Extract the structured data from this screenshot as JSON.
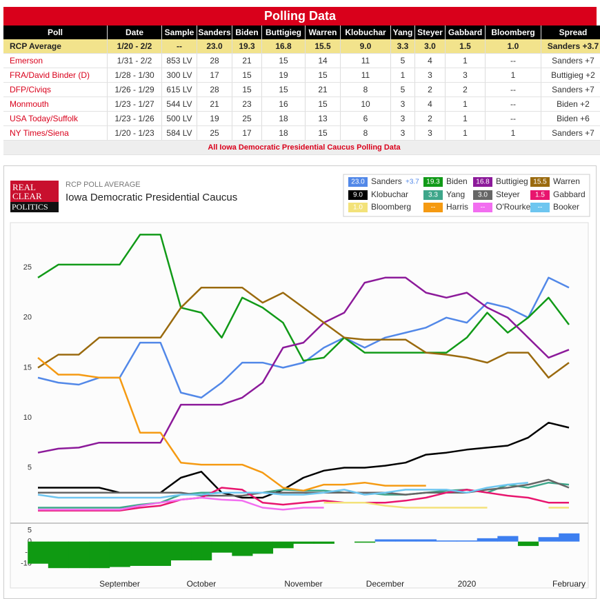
{
  "table": {
    "title": "Polling Data",
    "columns": [
      "Poll",
      "Date",
      "Sample",
      "Sanders",
      "Biden",
      "Buttigieg",
      "Warren",
      "Klobuchar",
      "Yang",
      "Steyer",
      "Gabbard",
      "Bloomberg",
      "Spread"
    ],
    "rows": [
      [
        "RCP Average",
        "1/20 - 2/2",
        "--",
        "23.0",
        "19.3",
        "16.8",
        "15.5",
        "9.0",
        "3.3",
        "3.0",
        "1.5",
        "1.0",
        "Sanders +3.7"
      ],
      [
        "Emerson",
        "1/31 - 2/2",
        "853 LV",
        "28",
        "21",
        "15",
        "14",
        "11",
        "5",
        "4",
        "1",
        "--",
        "Sanders +7"
      ],
      [
        "FRA/David Binder (D)",
        "1/28 - 1/30",
        "300 LV",
        "17",
        "15",
        "19",
        "15",
        "11",
        "1",
        "3",
        "3",
        "1",
        "Buttigieg +2"
      ],
      [
        "DFP/Civiqs",
        "1/26 - 1/29",
        "615 LV",
        "28",
        "15",
        "15",
        "21",
        "8",
        "5",
        "2",
        "2",
        "--",
        "Sanders +7"
      ],
      [
        "Monmouth",
        "1/23 - 1/27",
        "544 LV",
        "21",
        "23",
        "16",
        "15",
        "10",
        "3",
        "4",
        "1",
        "--",
        "Biden +2"
      ],
      [
        "USA Today/Suffolk",
        "1/23 - 1/26",
        "500 LV",
        "19",
        "25",
        "18",
        "13",
        "6",
        "3",
        "2",
        "1",
        "--",
        "Biden +6"
      ],
      [
        "NY Times/Siena",
        "1/20 - 1/23",
        "584 LV",
        "25",
        "17",
        "18",
        "15",
        "8",
        "3",
        "3",
        "1",
        "1",
        "Sanders +7"
      ]
    ],
    "footer": "All Iowa Democratic Presidential Caucus Polling Data"
  },
  "chart_data": {
    "type": "line",
    "logo": [
      "REAL",
      "CLEAR",
      "POLITICS"
    ],
    "subtitle": "RCP POLL AVERAGE",
    "title": "Iowa Democratic Presidential Caucus",
    "categories": [
      null,
      null,
      null,
      null,
      "September",
      null,
      null,
      null,
      "October",
      null,
      null,
      null,
      null,
      "November",
      null,
      null,
      null,
      "December",
      null,
      null,
      null,
      "2020",
      null,
      null,
      null,
      null,
      "February"
    ],
    "ylim": [
      0,
      29.5
    ],
    "yticks": [
      5,
      10,
      15,
      20,
      25
    ],
    "grid": false,
    "series": [
      {
        "name": "Sanders",
        "color": "#5288e8",
        "label": "23.0",
        "spread": "+3.7",
        "values": [
          14,
          13.5,
          13.3,
          14,
          14,
          17.5,
          17.5,
          12.5,
          12,
          13.5,
          15.5,
          15.5,
          15,
          15.5,
          17,
          18,
          17,
          18,
          18.5,
          19,
          20,
          19.5,
          21.5,
          21,
          20,
          24,
          23.0
        ]
      },
      {
        "name": "Biden",
        "color": "#119a18",
        "label": "19.3",
        "values": [
          24,
          25.3,
          25.3,
          25.3,
          25.3,
          28.3,
          28.3,
          21,
          20.5,
          18,
          22,
          21,
          19.5,
          15.7,
          16,
          18,
          16.5,
          16.5,
          16.5,
          16.5,
          16.5,
          18,
          20.5,
          18.5,
          20,
          22,
          19.3
        ]
      },
      {
        "name": "Buttigieg",
        "color": "#8c1a9a",
        "label": "16.8",
        "values": [
          6.5,
          6.9,
          7,
          7.5,
          7.5,
          7.5,
          7.5,
          11.3,
          11.3,
          11.3,
          12,
          13.5,
          17,
          17.5,
          19.5,
          20.5,
          23.5,
          24,
          24,
          22.5,
          22,
          22.5,
          21,
          20,
          18,
          16,
          16.8
        ]
      },
      {
        "name": "Warren",
        "color": "#9a6a0e",
        "label": "15.5",
        "values": [
          15,
          16.3,
          16.3,
          18,
          18,
          18,
          18,
          21,
          23,
          23,
          23,
          21.5,
          22.5,
          21,
          19.5,
          18,
          17.8,
          17.8,
          17.8,
          16.5,
          16.3,
          16,
          15.5,
          16.5,
          16.5,
          14,
          15.5
        ]
      },
      {
        "name": "Klobuchar",
        "color": "#000000",
        "label": "9.0",
        "values": [
          3,
          3,
          3,
          3,
          2.5,
          2.5,
          2.5,
          4,
          4.6,
          2.5,
          2,
          2,
          2.8,
          4,
          4.7,
          5,
          5,
          5.2,
          5.5,
          6.3,
          6.5,
          6.8,
          7,
          7.2,
          8,
          9.5,
          9.0
        ]
      },
      {
        "name": "Yang",
        "color": "#3ea68a",
        "label": "3.3",
        "values": [
          1,
          1,
          1,
          1,
          1,
          1.3,
          1.5,
          2.3,
          2.5,
          2.5,
          2.5,
          2.5,
          2.8,
          2.7,
          2.7,
          2.5,
          2.5,
          2.3,
          2.3,
          2.5,
          2.7,
          2.8,
          2.5,
          3.3,
          3,
          3.5,
          3.3
        ]
      },
      {
        "name": "Steyer",
        "color": "#666666",
        "label": "3.0",
        "values": [
          2.5,
          2.5,
          2.5,
          2.5,
          2.5,
          2.5,
          2.5,
          2.5,
          2.2,
          2.2,
          2.2,
          2.5,
          2.5,
          2.5,
          2.5,
          2.5,
          2.5,
          2.5,
          2.3,
          2.5,
          2.5,
          2.5,
          2.8,
          3,
          3.3,
          3.8,
          3.0
        ]
      },
      {
        "name": "Gabbard",
        "color": "#e8156e",
        "label": "1.5",
        "values": [
          0.7,
          0.7,
          0.7,
          0.7,
          0.7,
          1.0,
          1.2,
          1.8,
          2,
          3,
          2.8,
          1.5,
          1.3,
          1.5,
          1.7,
          1.5,
          1.5,
          1.5,
          1.7,
          2,
          2.5,
          2.8,
          2.5,
          2.2,
          2,
          1.5,
          1.5
        ]
      },
      {
        "name": "Bloomberg",
        "color": "#f3e27a",
        "label": "1.0",
        "values": [
          null,
          null,
          null,
          null,
          null,
          null,
          null,
          null,
          null,
          null,
          null,
          null,
          null,
          null,
          1.5,
          1.5,
          1.5,
          1.2,
          1.0,
          1.0,
          1.0,
          1.0,
          1.0,
          null,
          null,
          1.0,
          1.0
        ]
      },
      {
        "name": "Harris",
        "color": "#f59a12",
        "label": "--",
        "values": [
          16,
          14.3,
          14.3,
          14,
          14,
          8.5,
          8.5,
          5.5,
          5.3,
          5.3,
          5.3,
          4.5,
          3,
          2.7,
          3.3,
          3.3,
          3.5,
          3.2,
          3.2,
          3.2,
          null,
          null,
          null,
          null,
          null,
          null,
          null
        ]
      },
      {
        "name": "O'Rourke",
        "color": "#f26ef0",
        "label": "--",
        "values": [
          0.8,
          0.8,
          0.8,
          0.8,
          0.8,
          1.2,
          1.5,
          1.8,
          2.0,
          1.8,
          1.7,
          1.0,
          0.8,
          1.0,
          1.0,
          null,
          null,
          null,
          null,
          null,
          null,
          null,
          null,
          null,
          null,
          null,
          null
        ]
      },
      {
        "name": "Booker",
        "color": "#6ec6f0",
        "label": "--",
        "values": [
          2.3,
          2.0,
          2.0,
          2.0,
          2.0,
          2.0,
          2.0,
          2.3,
          2.3,
          2.5,
          2.5,
          2.5,
          2.3,
          2.3,
          2.5,
          2.8,
          2.3,
          2.5,
          2.8,
          2.8,
          2.8,
          2.5,
          3.0,
          3.3,
          3.5,
          null,
          null
        ]
      }
    ],
    "spread": {
      "ylim": [
        -13.5,
        8
      ],
      "yticks": [
        5,
        0,
        -5,
        -10
      ],
      "positive_color": "#3d7ff0",
      "negative_color": "#0f9a12",
      "values": [
        -10,
        -12,
        -12,
        -12,
        -11.5,
        -11,
        -11,
        -8.5,
        -8.5,
        -5,
        -6.5,
        -5.5,
        -3,
        -1,
        -1,
        0,
        -0.5,
        1,
        1,
        1,
        0.5,
        0.5,
        1.5,
        2.5,
        -2,
        2,
        3.7
      ]
    }
  }
}
